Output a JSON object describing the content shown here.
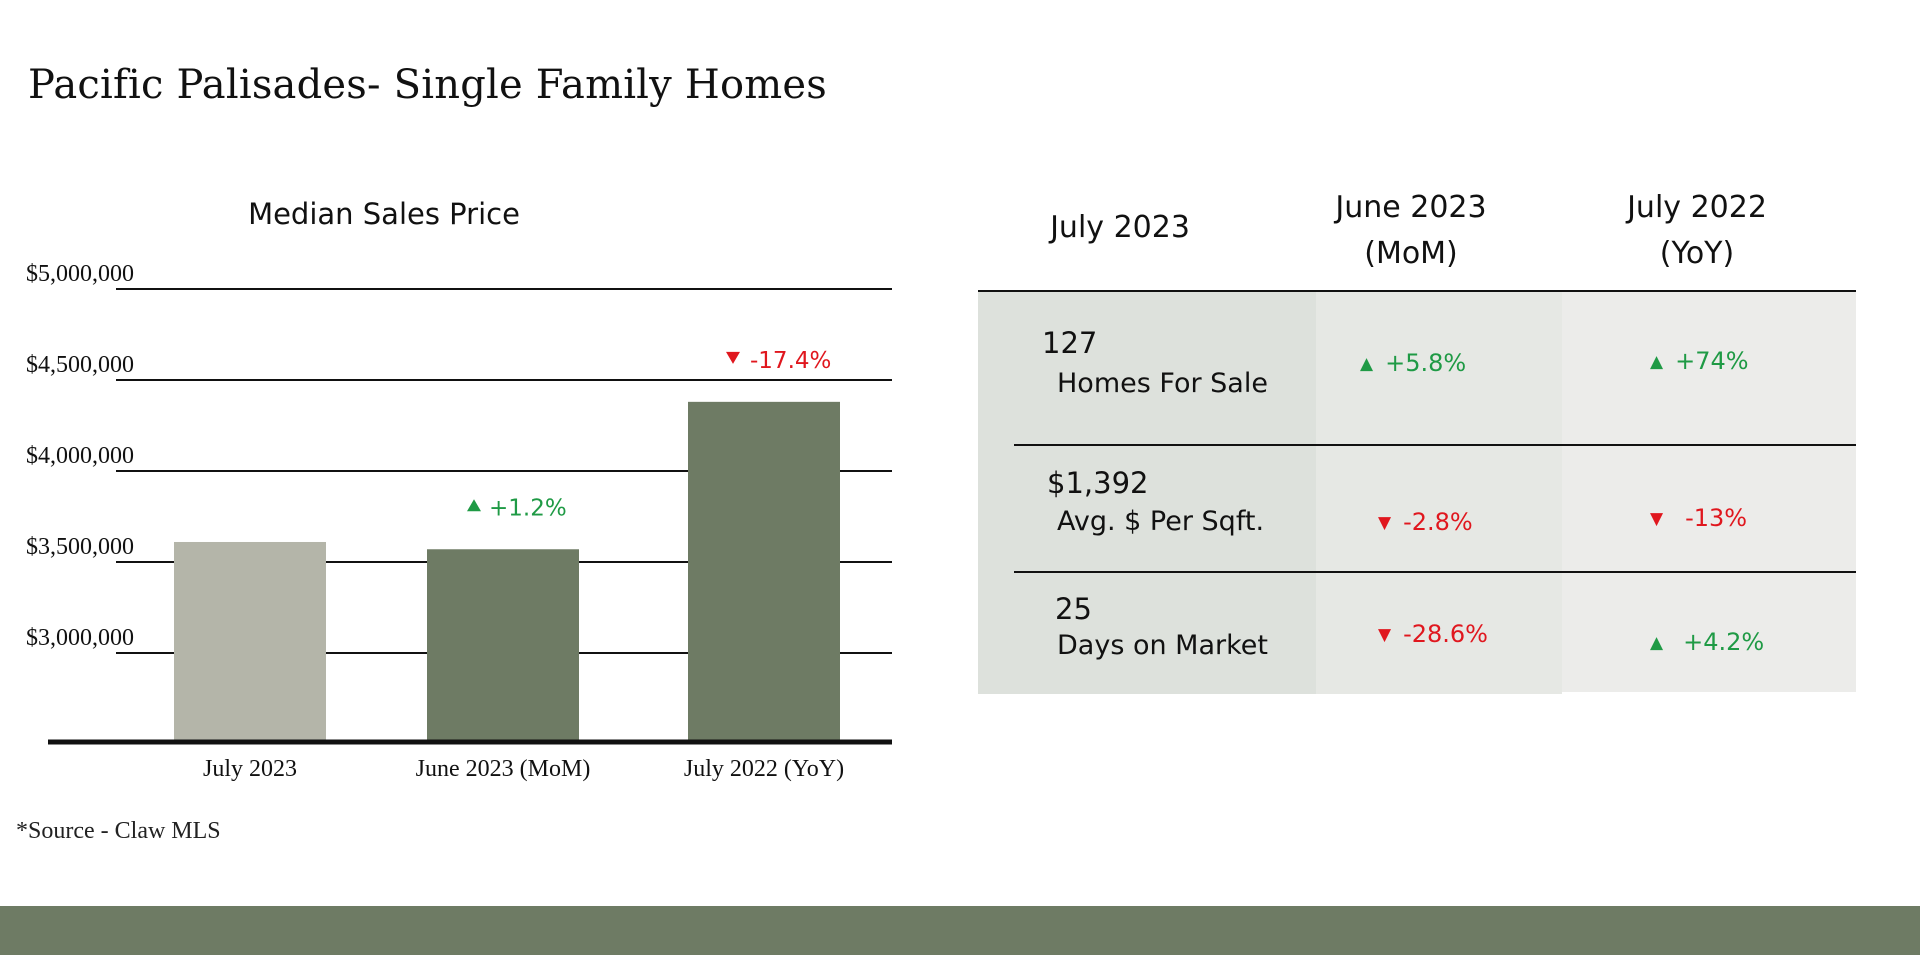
{
  "title": "Pacific Palisades- Single Family Homes",
  "source": "*Source - Claw MLS",
  "colors": {
    "bar_light": "#b4b5a9",
    "bar_dark": "#6e7b64",
    "up": "#1f9a45",
    "down": "#e0171e",
    "footer": "#6e7b64",
    "col1_bg": "#dde1dc",
    "col2_bg": "#e6e8e4",
    "col3_bg": "#ececea"
  },
  "chart_data": {
    "type": "bar",
    "title": "Median Sales Price",
    "categories": [
      "July 2023",
      "June 2023 (MoM)",
      "July 2022 (YoY)"
    ],
    "values": [
      3610000,
      3570000,
      4380000
    ],
    "annotations": [
      null,
      {
        "text": "+1.2%",
        "direction": "up"
      },
      {
        "text": "-17.4%",
        "direction": "down"
      }
    ],
    "ytick_labels": [
      "$5,000,000",
      "$4,500,000",
      "$4,000,000",
      "$3,500,000",
      "$3,000,000"
    ],
    "yticks": [
      5000000,
      4500000,
      4000000,
      3500000,
      3000000
    ],
    "ylim": [
      2500000,
      5000000
    ],
    "grid": true,
    "xlabel": "",
    "ylabel": ""
  },
  "table": {
    "headers": [
      {
        "line1": "July 2023",
        "line2": ""
      },
      {
        "line1": "June 2023",
        "line2": "(MoM)"
      },
      {
        "line1": "July 2022",
        "line2": "(YoY)"
      }
    ],
    "rows": [
      {
        "value": "127",
        "label": "Homes For Sale",
        "mom": {
          "text": "+5.8%",
          "direction": "up"
        },
        "yoy": {
          "text": "+74%",
          "direction": "up"
        }
      },
      {
        "value": "$1,392",
        "label": "Avg. $ Per Sqft.",
        "mom": {
          "text": "-2.8%",
          "direction": "down"
        },
        "yoy": {
          "text": "-13%",
          "direction": "down"
        }
      },
      {
        "value": "25",
        "label": "Days on Market",
        "mom": {
          "text": "-28.6%",
          "direction": "down"
        },
        "yoy": {
          "text": "+4.2%",
          "direction": "up"
        }
      }
    ]
  },
  "icons": {
    "up": "triangle-up-icon",
    "down": "triangle-down-icon"
  }
}
